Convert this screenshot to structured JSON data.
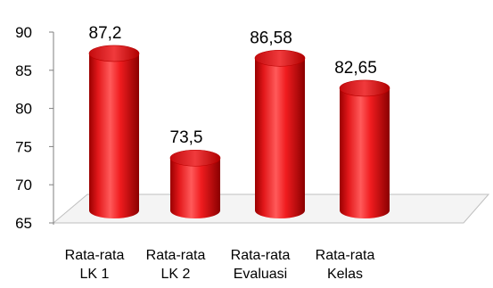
{
  "chart_data": {
    "type": "bar",
    "style": "3d-cylinder",
    "title": "",
    "xlabel": "",
    "ylabel": "",
    "categories": [
      [
        "Rata-rata",
        "LK 1"
      ],
      [
        "Rata-rata",
        "LK 2"
      ],
      [
        "Rata-rata",
        "Evaluasi"
      ],
      [
        "Rata-rata",
        "Kelas"
      ]
    ],
    "values": [
      87.2,
      73.5,
      86.58,
      82.65
    ],
    "data_labels": [
      "87,2",
      "73,5",
      "86,58",
      "82,65"
    ],
    "yticks": [
      "65",
      "70",
      "75",
      "80",
      "85",
      "90"
    ],
    "ylim": [
      65,
      90
    ],
    "grid": false,
    "legend": "none",
    "colors": {
      "bar": "#e8191c",
      "bar_dark": "#8e0000",
      "bar_light": "#ff7a7a",
      "floor_line": "#bfbfbf",
      "axis": "#7f7f7f"
    }
  }
}
